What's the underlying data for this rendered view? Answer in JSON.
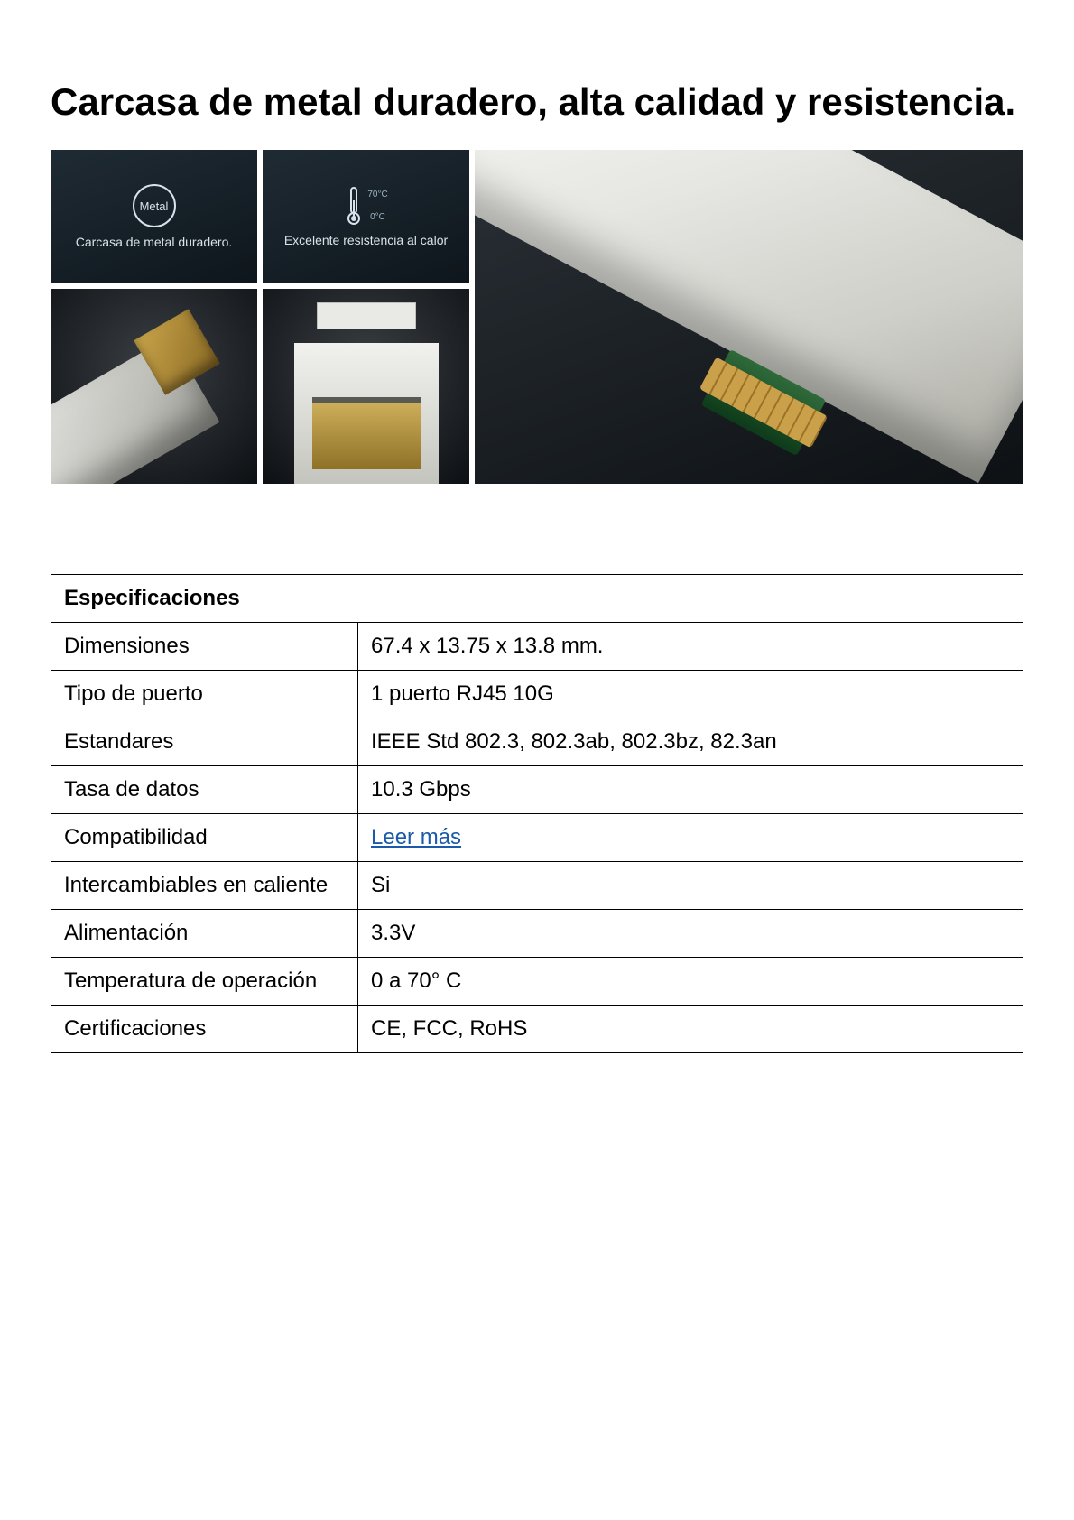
{
  "heading": "Carcasa de metal duradero, alta calidad y resistencia.",
  "info_panels": {
    "metal": {
      "icon_label": "Metal",
      "caption": "Carcasa de metal duradero."
    },
    "thermo": {
      "caption": "Excelente resistencia al calor",
      "temp_high": "70°C",
      "temp_low": "0°C"
    }
  },
  "specs": {
    "table_title": "Especificaciones",
    "rows": [
      {
        "label": "Dimensiones",
        "value": "67.4 x 13.75 x 13.8 mm."
      },
      {
        "label": "Tipo de puerto",
        "value": "1 puerto RJ45 10G"
      },
      {
        "label": "Estandares",
        "value": "IEEE Std 802.3, 802.3ab, 802.3bz, 82.3an"
      },
      {
        "label": "Tasa de datos",
        "value": "10.3 Gbps"
      },
      {
        "label": "Compatibilidad",
        "value": "Leer más",
        "is_link": true
      },
      {
        "label": "Intercambiables en caliente",
        "value": "Si"
      },
      {
        "label": "Alimentación",
        "value": "3.3V"
      },
      {
        "label": "Temperatura de operación",
        "value": "0 a 70° C"
      },
      {
        "label": "Certificaciones",
        "value": "CE, FCC, RoHS"
      }
    ]
  },
  "colors": {
    "link": "#1a5aa8",
    "border": "#000000",
    "panel_bg_from": "#1f2b34",
    "panel_bg_to": "#0e161c"
  }
}
